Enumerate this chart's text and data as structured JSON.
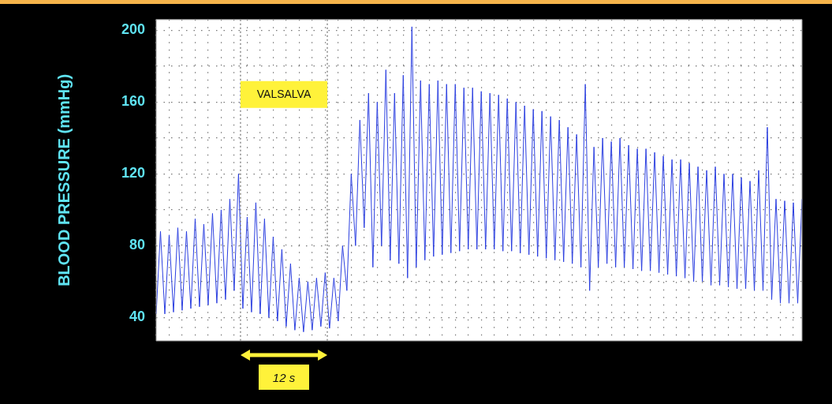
{
  "chart_data": {
    "type": "line",
    "ylabel": "BLOOD PRESSURE (mmHg)",
    "color": "#2b3fe0",
    "categories": [
      null,
      null,
      null,
      null,
      null,
      null,
      null,
      null,
      null,
      null,
      null,
      null,
      null,
      null,
      null,
      null,
      null,
      null,
      null,
      null,
      null,
      null,
      null,
      null,
      null,
      null,
      null,
      null,
      null,
      null,
      null,
      null,
      null,
      null,
      null,
      null,
      null,
      null,
      null,
      null,
      null,
      null,
      null,
      null,
      null,
      null,
      null,
      null,
      null,
      null,
      null,
      null,
      null,
      null,
      null,
      null,
      null,
      null,
      null,
      null,
      null,
      null,
      null,
      null,
      null,
      null,
      null,
      null,
      null,
      null,
      null,
      null,
      null,
      null,
      null,
      null,
      null,
      null,
      null,
      null,
      null,
      null,
      null,
      null,
      null,
      null,
      null,
      null,
      null,
      null,
      null,
      null,
      null,
      null,
      null,
      null,
      null,
      null,
      null,
      null,
      null,
      null,
      null,
      null,
      null,
      null,
      null,
      null,
      null,
      null,
      null,
      null,
      null,
      null,
      null,
      null,
      null,
      null,
      null,
      null,
      null,
      null,
      null,
      null,
      null,
      null,
      null,
      null,
      null,
      null,
      null,
      null,
      null,
      null,
      null,
      null,
      null,
      null,
      null,
      null,
      null,
      null,
      null,
      null,
      null,
      null,
      null,
      null,
      null,
      null
    ],
    "values": [
      42,
      88,
      42,
      86,
      43,
      90,
      44,
      88,
      45,
      95,
      46,
      92,
      47,
      98,
      48,
      100,
      50,
      106,
      55,
      120,
      45,
      96,
      43,
      104,
      42,
      95,
      40,
      85,
      38,
      78,
      35,
      70,
      33,
      62,
      32,
      60,
      33,
      62,
      35,
      65,
      34,
      62,
      38,
      80,
      55,
      120,
      80,
      150,
      90,
      165,
      68,
      160,
      80,
      178,
      72,
      165,
      70,
      175,
      62,
      202,
      68,
      172,
      72,
      170,
      74,
      172,
      75,
      170,
      76,
      170,
      77,
      168,
      78,
      168,
      78,
      166,
      78,
      165,
      78,
      164,
      77,
      162,
      77,
      160,
      76,
      158,
      75,
      156,
      74,
      155,
      73,
      152,
      72,
      150,
      71,
      146,
      70,
      142,
      68,
      170,
      55,
      135,
      68,
      140,
      70,
      138,
      68,
      140,
      68,
      136,
      67,
      134,
      66,
      134,
      66,
      132,
      65,
      130,
      64,
      128,
      63,
      128,
      62,
      126,
      60,
      124,
      60,
      122,
      58,
      124,
      58,
      120,
      57,
      120,
      56,
      118,
      56,
      116,
      55,
      122,
      55,
      146,
      50,
      106,
      48,
      105,
      48,
      104,
      48,
      106
    ],
    "ylim": [
      27,
      206
    ],
    "yticks": [
      40,
      {
        "value": 60,
        "label": null
      },
      80,
      {
        "value": 100,
        "label": null
      },
      120,
      {
        "value": 140,
        "label": null
      },
      160,
      {
        "value": 180,
        "label": null
      },
      200
    ],
    "tick_labels": "y",
    "grid": true,
    "annotations": [
      "VALSALVA",
      "12 s"
    ]
  }
}
